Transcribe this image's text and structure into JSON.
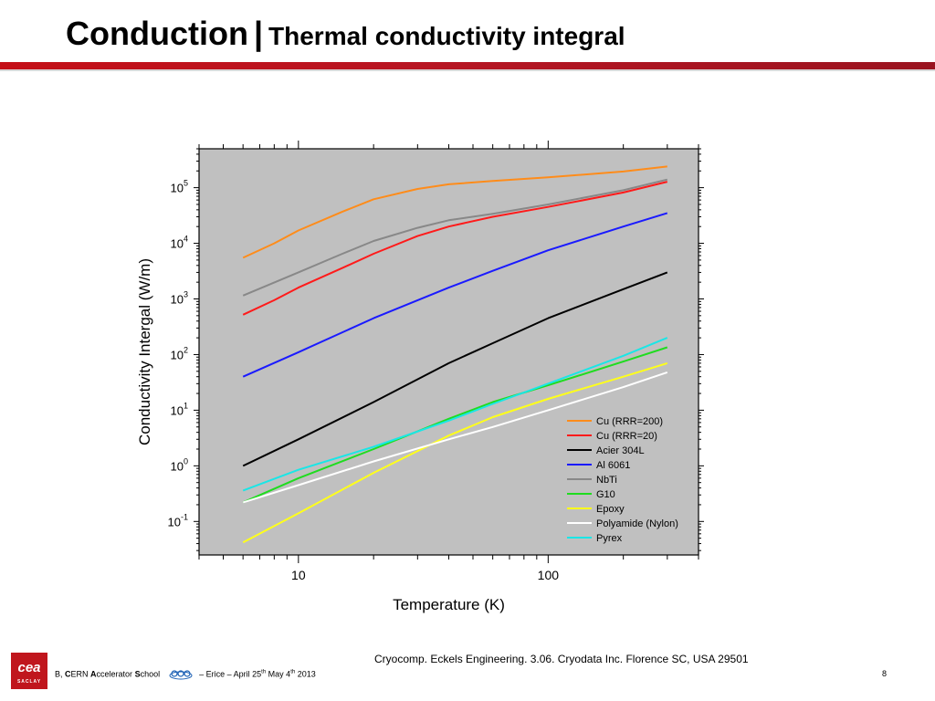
{
  "header": {
    "title_main": "Conduction",
    "title_separator": "|",
    "title_sub": "Thermal conductivity integral"
  },
  "colors": {
    "header_bar": "#c40f17",
    "plot_background": "#c0c0c0"
  },
  "chart_data": {
    "type": "line",
    "title": "",
    "xlabel": "Temperature (K)",
    "ylabel": "Conductivity Intergal (W/m)",
    "xscale": "log",
    "yscale": "log",
    "xlim": [
      4,
      400
    ],
    "ylim": [
      0.025,
      500000
    ],
    "x_tick_labels": [
      "10",
      "100"
    ],
    "y_tick_labels": [
      {
        "base": "10",
        "exp": "5"
      },
      {
        "base": "10",
        "exp": "4"
      },
      {
        "base": "10",
        "exp": "3"
      },
      {
        "base": "10",
        "exp": "2"
      },
      {
        "base": "10",
        "exp": "1"
      },
      {
        "base": "10",
        "exp": "0"
      },
      {
        "base": "10",
        "exp": "-1"
      }
    ],
    "grid": false,
    "legend_position": "bottom-right",
    "series": [
      {
        "name": "Cu (RRR=200)",
        "color": "#ff8c1a",
        "points": [
          [
            6,
            5500
          ],
          [
            8,
            10000
          ],
          [
            10,
            17000
          ],
          [
            15,
            37000
          ],
          [
            20,
            62000
          ],
          [
            30,
            95000
          ],
          [
            40,
            115000
          ],
          [
            60,
            132000
          ],
          [
            100,
            153000
          ],
          [
            200,
            195000
          ],
          [
            300,
            240000
          ]
        ]
      },
      {
        "name": "Cu (RRR=20)",
        "color": "#ff1a1a",
        "points": [
          [
            6,
            520
          ],
          [
            8,
            950
          ],
          [
            10,
            1600
          ],
          [
            15,
            3600
          ],
          [
            20,
            6500
          ],
          [
            30,
            13500
          ],
          [
            40,
            20000
          ],
          [
            60,
            30000
          ],
          [
            100,
            45000
          ],
          [
            200,
            82000
          ],
          [
            300,
            128000
          ]
        ]
      },
      {
        "name": "Acier 304L",
        "color": "#000000",
        "points": [
          [
            6,
            1.0
          ],
          [
            10,
            3.0
          ],
          [
            20,
            14
          ],
          [
            40,
            70
          ],
          [
            60,
            160
          ],
          [
            100,
            450
          ],
          [
            200,
            1500
          ],
          [
            300,
            3000
          ]
        ]
      },
      {
        "name": "Al 6061",
        "color": "#1a1aff",
        "points": [
          [
            6,
            40
          ],
          [
            10,
            110
          ],
          [
            20,
            450
          ],
          [
            40,
            1600
          ],
          [
            60,
            3200
          ],
          [
            100,
            7500
          ],
          [
            200,
            20000
          ],
          [
            300,
            35000
          ]
        ]
      },
      {
        "name": "NbTi",
        "color": "#888888",
        "points": [
          [
            6,
            1150
          ],
          [
            10,
            3000
          ],
          [
            15,
            6500
          ],
          [
            20,
            11000
          ],
          [
            30,
            19000
          ],
          [
            40,
            26000
          ],
          [
            60,
            34000
          ],
          [
            100,
            50000
          ],
          [
            200,
            90000
          ],
          [
            300,
            140000
          ]
        ]
      },
      {
        "name": "G10",
        "color": "#1fdc1f",
        "points": [
          [
            6,
            0.22
          ],
          [
            10,
            0.6
          ],
          [
            20,
            2.0
          ],
          [
            40,
            7
          ],
          [
            60,
            14
          ],
          [
            100,
            28
          ],
          [
            200,
            75
          ],
          [
            300,
            135
          ]
        ]
      },
      {
        "name": "Epoxy",
        "color": "#ffff1a",
        "points": [
          [
            6,
            0.042
          ],
          [
            10,
            0.14
          ],
          [
            20,
            0.75
          ],
          [
            40,
            3.5
          ],
          [
            60,
            7.5
          ],
          [
            100,
            16
          ],
          [
            200,
            40
          ],
          [
            300,
            70
          ]
        ]
      },
      {
        "name": "Polyamide (Nylon)",
        "color": "#ffffff",
        "points": [
          [
            6,
            0.22
          ],
          [
            10,
            0.45
          ],
          [
            20,
            1.2
          ],
          [
            40,
            3.0
          ],
          [
            60,
            5.0
          ],
          [
            100,
            10
          ],
          [
            200,
            26
          ],
          [
            300,
            48
          ]
        ]
      },
      {
        "name": "Pyrex",
        "color": "#1ae6e6",
        "points": [
          [
            6,
            0.36
          ],
          [
            10,
            0.85
          ],
          [
            20,
            2.2
          ],
          [
            40,
            6.5
          ],
          [
            60,
            13
          ],
          [
            100,
            30
          ],
          [
            200,
            95
          ],
          [
            300,
            200
          ]
        ]
      }
    ]
  },
  "source_text": "Cryocomp. Eckels Engineering. 3.06. Cryodata Inc. Florence SC, USA 29501",
  "footer": {
    "logo_text": "cea",
    "logo_subtext": "SACLAY",
    "org_b": "B",
    "org_b2": "B, ",
    "c": "C",
    "ern": "ERN ",
    "a": "A",
    "ccelerator": "ccelerator ",
    "s": "S",
    "chool": "chool",
    "cas_icon": "cas-icon",
    "event_pre": " – Erice – April 25",
    "sup1": "th",
    "event_mid": "  May 4",
    "sup2": "th",
    "event_post": " 2013",
    "page_number": "8"
  }
}
